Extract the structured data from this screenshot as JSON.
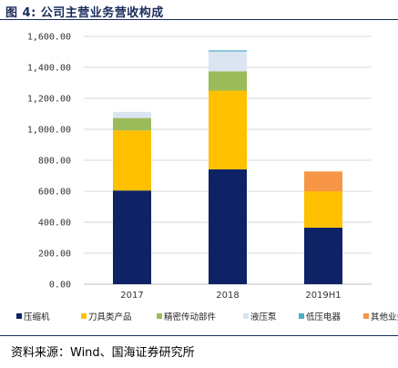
{
  "figure": {
    "title": "图 4:  公司主营业务营收构成",
    "source": "资料来源：Wind、国海证券研究所"
  },
  "chart_data": {
    "type": "bar",
    "stacked": true,
    "title": "",
    "xlabel": "",
    "ylabel": "",
    "categories": [
      "2017",
      "2018",
      "2019H1"
    ],
    "ylim": [
      0,
      1600
    ],
    "yticks": [
      0,
      200,
      400,
      600,
      800,
      1000,
      1200,
      1400,
      1600
    ],
    "ytick_labels": [
      "0.00",
      "200.00",
      "400.00",
      "600.00",
      "800.00",
      "1,000.00",
      "1,200.00",
      "1,400.00",
      "1,600.00"
    ],
    "grid": true,
    "legend_position": "bottom",
    "series": [
      {
        "name": "压缩机",
        "color": "#0d2366",
        "values": [
          605,
          742,
          365
        ]
      },
      {
        "name": "刀具类产品",
        "color": "#ffc000",
        "values": [
          388,
          508,
          235
        ]
      },
      {
        "name": "精密传动部件",
        "color": "#9bbb59",
        "values": [
          80,
          125,
          0
        ]
      },
      {
        "name": "液压泵",
        "color": "#dbe5f1",
        "values": [
          40,
          128,
          0
        ]
      },
      {
        "name": "低压电器",
        "color": "#4bacc6",
        "values": [
          0,
          7,
          0
        ]
      },
      {
        "name": "其他业务",
        "color": "#f79646",
        "values": [
          0,
          0,
          128
        ]
      }
    ]
  }
}
